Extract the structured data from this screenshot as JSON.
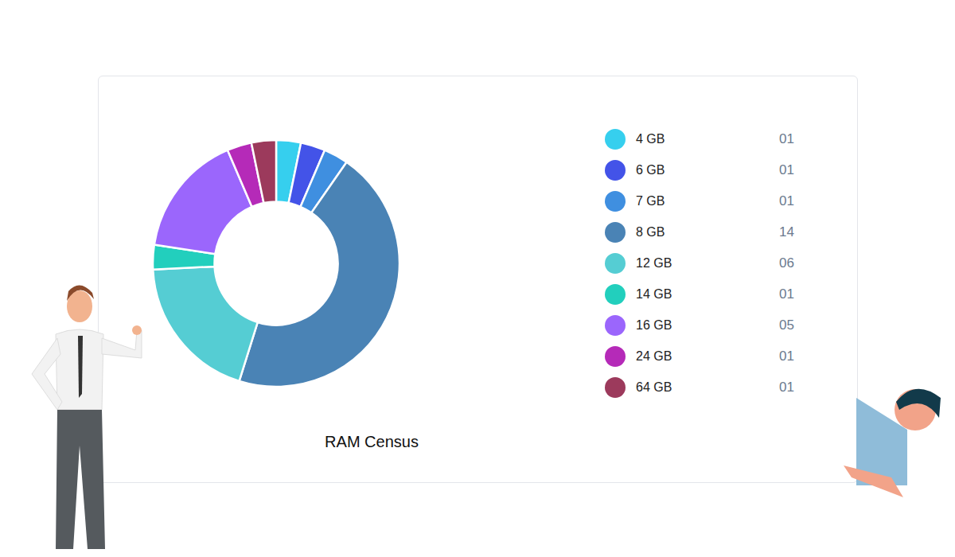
{
  "chart_data": {
    "type": "pie",
    "title": "RAM Census",
    "categories": [
      "4 GB",
      "6 GB",
      "7 GB",
      "8 GB",
      "12 GB",
      "14 GB",
      "16 GB",
      "24 GB",
      "64 GB"
    ],
    "values": [
      1,
      1,
      1,
      14,
      6,
      1,
      5,
      1,
      1
    ],
    "value_labels": [
      "01",
      "01",
      "01",
      "14",
      "06",
      "01",
      "05",
      "01",
      "01"
    ],
    "colors": [
      "#36cfee",
      "#4353e8",
      "#3f8fe0",
      "#4a83b5",
      "#55cdd3",
      "#22cfbd",
      "#9b66fc",
      "#b52ab8",
      "#9c3a5c"
    ],
    "legend": "right"
  }
}
